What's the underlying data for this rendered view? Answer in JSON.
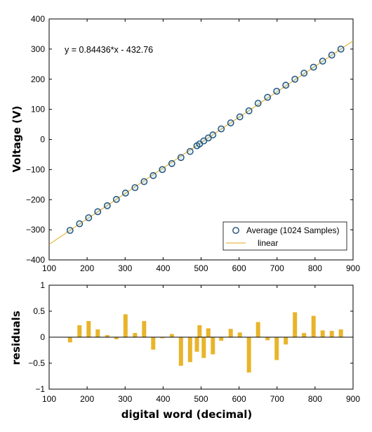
{
  "chart_data": [
    {
      "type": "scatter",
      "title": "",
      "xlabel": "",
      "ylabel": "Voltage (V)",
      "xlim": [
        100,
        900
      ],
      "ylim": [
        -400,
        400
      ],
      "xticks": [
        100,
        200,
        300,
        400,
        500,
        600,
        700,
        800,
        900
      ],
      "xtick_labels": [
        "100",
        "200",
        "300",
        "400",
        "500",
        "600",
        "700",
        "800",
        "900"
      ],
      "yticks": [
        400,
        300,
        200,
        100,
        0,
        -100,
        -200,
        -300,
        -400
      ],
      "ytick_labels": [
        "400",
        "300",
        "200",
        "100",
        "0",
        "−100",
        "−200",
        "−300",
        "−400"
      ],
      "annotation": "y = 0.84436*x - 432.76",
      "fit": {
        "slope": 0.84436,
        "intercept": -432.76,
        "color": "#e0a81e"
      },
      "series": [
        {
          "name": "Average (1024 Samples)",
          "marker": "circle",
          "edge_color": "#1f4e79",
          "face_color": "#2a9fd6",
          "x": [
            155,
            180,
            204,
            228,
            253,
            277,
            301,
            326,
            350,
            374,
            398,
            423,
            447,
            471,
            489,
            496,
            507,
            519,
            531,
            553,
            578,
            602,
            626,
            650,
            675,
            699,
            723,
            747,
            771,
            796,
            820,
            844,
            868
          ],
          "y": [
            -302,
            -280,
            -260,
            -240,
            -220,
            -199,
            -178,
            -160,
            -140,
            -120,
            -100,
            -80,
            -60,
            -40,
            -21,
            -15,
            -5,
            5,
            15,
            35,
            55,
            75,
            95,
            120,
            140,
            160,
            180,
            200,
            220,
            240,
            260,
            280,
            300
          ]
        },
        {
          "name": "linear",
          "type": "line",
          "color": "#e0a81e"
        }
      ],
      "legend_position": "bottom-right"
    },
    {
      "type": "bar",
      "title": "",
      "xlabel": "digital word (decimal)",
      "ylabel": "residuals",
      "xlim": [
        100,
        900
      ],
      "ylim": [
        -1,
        1
      ],
      "xticks": [
        100,
        200,
        300,
        400,
        500,
        600,
        700,
        800,
        900
      ],
      "xtick_labels": [
        "100",
        "200",
        "300",
        "400",
        "500",
        "600",
        "700",
        "800",
        "900"
      ],
      "yticks": [
        1,
        0.5,
        0,
        -0.5,
        -1
      ],
      "ytick_labels": [
        "1",
        "0.5",
        "0",
        "−0.5",
        "−1"
      ],
      "bar_color": "#e8b42a",
      "x": [
        155,
        180,
        204,
        228,
        253,
        277,
        301,
        326,
        350,
        374,
        398,
        423,
        447,
        471,
        489,
        496,
        507,
        519,
        531,
        553,
        578,
        602,
        626,
        650,
        675,
        699,
        723,
        747,
        771,
        796,
        820,
        844,
        868
      ],
      "values": [
        -0.1,
        0.23,
        0.31,
        0.15,
        0.04,
        -0.04,
        0.44,
        0.08,
        0.31,
        -0.24,
        -0.02,
        0.06,
        -0.55,
        -0.48,
        -0.28,
        0.23,
        -0.4,
        0.17,
        -0.33,
        -0.07,
        0.16,
        0.09,
        -0.68,
        0.29,
        -0.06,
        -0.44,
        -0.14,
        0.48,
        0.08,
        0.41,
        0.13,
        0.12,
        0.15
      ]
    }
  ]
}
